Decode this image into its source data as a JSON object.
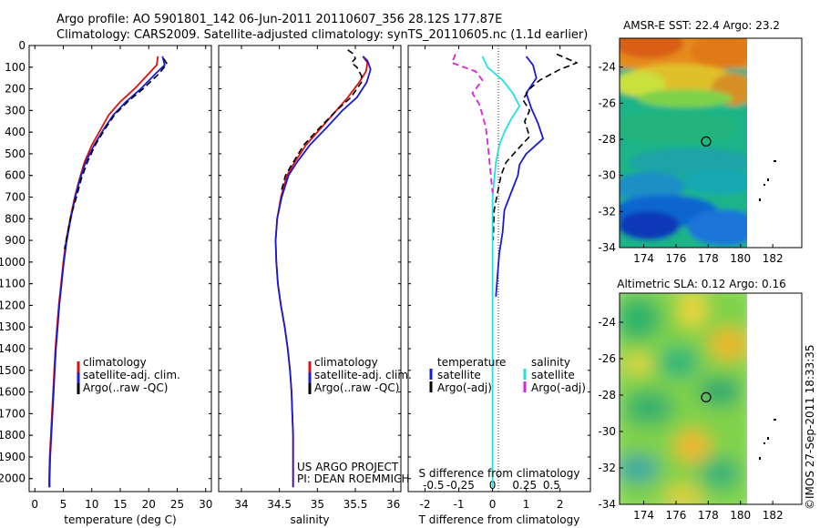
{
  "header": {
    "line1": "Argo profile: AO 5901801_142 06-Jun-2011 20110607_356 28.12S 177.87E",
    "line2": "Climatology: CARS2009. Satellite-adjusted climatology: synTS_20110605.nc (1.1d earlier)"
  },
  "project_note": {
    "line1": "US ARGO PROJECT",
    "line2": "PI: DEAN ROEMMICH"
  },
  "footer_stamp": "©IMOS 27-Sep-2011 18:33:35",
  "colors": {
    "red": "#dd1111",
    "blue": "#1a1ad6",
    "black": "#000000",
    "cyan": "#22e0e6",
    "magenta": "#e020e0"
  },
  "chart_data": [
    {
      "type": "line",
      "panel": "temperature",
      "xlabel": "temperature (deg C)",
      "xlim": [
        -1,
        31
      ],
      "xticks": [
        0,
        5,
        10,
        15,
        20,
        25,
        30
      ],
      "ylim": [
        2060,
        0
      ],
      "yticks": [
        0,
        100,
        200,
        300,
        400,
        500,
        600,
        700,
        800,
        900,
        1000,
        1100,
        1200,
        1300,
        1400,
        1500,
        1600,
        1700,
        1800,
        1900,
        2000
      ],
      "legend": {
        "placement": "lower-center",
        "entries": [
          "climatology",
          "satellite-adj. clim.",
          "Argo(..raw -QC)"
        ]
      },
      "series": [
        {
          "name": "climatology",
          "color": "red",
          "style": "solid",
          "points": [
            [
              21.6,
              50
            ],
            [
              21.4,
              90
            ],
            [
              20,
              130
            ],
            [
              17.5,
              200
            ],
            [
              15,
              260
            ],
            [
              13,
              320
            ],
            [
              11.5,
              390
            ],
            [
              10,
              460
            ],
            [
              8.7,
              540
            ],
            [
              7.8,
              620
            ],
            [
              7,
              700
            ],
            [
              6.2,
              800
            ],
            [
              5.5,
              900
            ],
            [
              5,
              1000
            ],
            [
              4.6,
              1100
            ],
            [
              4.2,
              1200
            ],
            [
              3.9,
              1300
            ],
            [
              3.6,
              1400
            ],
            [
              3.4,
              1500
            ],
            [
              3.2,
              1600
            ],
            [
              3,
              1700
            ],
            [
              2.8,
              1800
            ],
            [
              2.6,
              1900
            ],
            [
              2.5,
              2000
            ],
            [
              2.5,
              2040
            ]
          ]
        },
        {
          "name": "satellite-adj. clim.",
          "color": "blue",
          "style": "solid",
          "points": [
            [
              22.4,
              50
            ],
            [
              22.8,
              90
            ],
            [
              21.2,
              130
            ],
            [
              18.6,
              200
            ],
            [
              16,
              260
            ],
            [
              13.8,
              320
            ],
            [
              12,
              390
            ],
            [
              10.4,
              460
            ],
            [
              8.9,
              540
            ],
            [
              7.9,
              620
            ],
            [
              7.1,
              700
            ],
            [
              6.3,
              800
            ],
            [
              5.6,
              900
            ],
            [
              5.1,
              1000
            ],
            [
              4.7,
              1100
            ],
            [
              4.3,
              1200
            ],
            [
              4,
              1300
            ],
            [
              3.7,
              1400
            ],
            [
              3.5,
              1500
            ],
            [
              3.3,
              1600
            ],
            [
              3.1,
              1700
            ],
            [
              2.9,
              1800
            ],
            [
              2.7,
              1900
            ],
            [
              2.6,
              2000
            ],
            [
              2.6,
              2040
            ]
          ]
        },
        {
          "name": "Argo(..raw -QC)",
          "color": "black",
          "style": "dashed",
          "points": [
            [
              22.6,
              60
            ],
            [
              23.2,
              85
            ],
            [
              21.8,
              130
            ],
            [
              19,
              200
            ],
            [
              16.3,
              260
            ],
            [
              14,
              320
            ],
            [
              12.2,
              390
            ],
            [
              10.6,
              460
            ],
            [
              9.2,
              540
            ],
            [
              8.1,
              620
            ],
            [
              7.3,
              700
            ],
            [
              6.4,
              780
            ],
            [
              5.8,
              860
            ],
            [
              5.2,
              940
            ]
          ]
        }
      ]
    },
    {
      "type": "line",
      "panel": "salinity",
      "xlabel": "salinity",
      "xlim": [
        33.7,
        36.1
      ],
      "xticks": [
        34,
        34.5,
        35,
        35.5,
        36
      ],
      "ylim": [
        2060,
        0
      ],
      "legend": {
        "placement": "lower-center",
        "entries": [
          "climatology",
          "satellite-adj. clim.",
          "Argo(..raw -QC)"
        ]
      },
      "series": [
        {
          "name": "climatology",
          "color": "red",
          "style": "solid",
          "points": [
            [
              35.6,
              50
            ],
            [
              35.66,
              80
            ],
            [
              35.64,
              120
            ],
            [
              35.55,
              170
            ],
            [
              35.4,
              240
            ],
            [
              35.25,
              300
            ],
            [
              35.05,
              380
            ],
            [
              34.85,
              460
            ],
            [
              34.7,
              540
            ],
            [
              34.6,
              600
            ],
            [
              34.52,
              700
            ],
            [
              34.47,
              800
            ],
            [
              34.45,
              900
            ],
            [
              34.46,
              1000
            ],
            [
              34.48,
              1100
            ],
            [
              34.52,
              1200
            ],
            [
              34.57,
              1300
            ],
            [
              34.61,
              1400
            ],
            [
              34.64,
              1500
            ],
            [
              34.66,
              1600
            ],
            [
              34.67,
              1700
            ],
            [
              34.68,
              1800
            ],
            [
              34.68,
              1900
            ],
            [
              34.68,
              2000
            ],
            [
              34.68,
              2040
            ]
          ]
        },
        {
          "name": "satellite-adj. clim.",
          "color": "blue",
          "style": "solid",
          "points": [
            [
              35.6,
              50
            ],
            [
              35.66,
              70
            ],
            [
              35.7,
              110
            ],
            [
              35.65,
              170
            ],
            [
              35.52,
              240
            ],
            [
              35.33,
              300
            ],
            [
              35.12,
              380
            ],
            [
              34.9,
              460
            ],
            [
              34.73,
              540
            ],
            [
              34.62,
              600
            ],
            [
              34.53,
              700
            ],
            [
              34.47,
              800
            ],
            [
              34.45,
              900
            ],
            [
              34.46,
              1000
            ],
            [
              34.48,
              1100
            ],
            [
              34.52,
              1200
            ],
            [
              34.57,
              1300
            ],
            [
              34.61,
              1400
            ],
            [
              34.64,
              1500
            ],
            [
              34.66,
              1600
            ],
            [
              34.67,
              1700
            ],
            [
              34.68,
              1800
            ],
            [
              34.68,
              1900
            ],
            [
              34.68,
              2000
            ],
            [
              34.68,
              2040
            ]
          ]
        },
        {
          "name": "Argo(..raw -QC)",
          "color": "black",
          "style": "dashed",
          "points": [
            [
              35.4,
              20
            ],
            [
              35.48,
              40
            ],
            [
              35.5,
              60
            ],
            [
              35.45,
              80
            ],
            [
              35.52,
              100
            ],
            [
              35.58,
              140
            ],
            [
              35.58,
              170
            ],
            [
              35.44,
              240
            ],
            [
              35.25,
              300
            ],
            [
              35.03,
              380
            ],
            [
              34.82,
              460
            ],
            [
              34.68,
              540
            ],
            [
              34.58,
              600
            ],
            [
              34.52,
              680
            ]
          ]
        }
      ]
    },
    {
      "type": "line",
      "panel": "difference",
      "xlabel": "T difference from climatology",
      "xlim": [
        -2.5,
        2.9
      ],
      "xticks": [
        -2,
        -1,
        0,
        1,
        2
      ],
      "xlabel2": "S difference from climatology",
      "xticks2": [
        {
          "label": "-0.5",
          "value": -1.75
        },
        {
          "label": "-0.25",
          "value": -0.95
        },
        {
          "label": "0",
          "value": 0
        },
        {
          "label": "0.25",
          "value": 0.95
        },
        {
          "label": "0.5",
          "value": 1.75
        }
      ],
      "ylim": [
        2060,
        0
      ],
      "legend": {
        "placement": "lower-center",
        "headers": [
          "temperature",
          "salinity"
        ],
        "entries": [
          "satellite",
          "Argo(-adj)",
          "satellite",
          "Argo(-adj)"
        ]
      },
      "series": [
        {
          "name": "temperature satellite",
          "color": "blue",
          "style": "solid",
          "points": [
            [
              1.0,
              50
            ],
            [
              1.2,
              90
            ],
            [
              1.3,
              150
            ],
            [
              1.0,
              220
            ],
            [
              1.15,
              290
            ],
            [
              1.35,
              360
            ],
            [
              1.5,
              430
            ],
            [
              1.0,
              500
            ],
            [
              0.8,
              550
            ],
            [
              0.75,
              600
            ],
            [
              0.6,
              660
            ],
            [
              0.35,
              760
            ],
            [
              0.3,
              860
            ],
            [
              0.2,
              960
            ],
            [
              0.15,
              1060
            ],
            [
              0.1,
              1160
            ]
          ]
        },
        {
          "name": "temperature Argo(-adj)",
          "color": "black",
          "style": "dashed",
          "points": [
            [
              1.9,
              40
            ],
            [
              2.5,
              80
            ],
            [
              2.0,
              110
            ],
            [
              1.4,
              160
            ],
            [
              1.1,
              200
            ],
            [
              0.9,
              250
            ],
            [
              1.1,
              300
            ],
            [
              0.95,
              350
            ],
            [
              1.1,
              420
            ],
            [
              0.8,
              470
            ],
            [
              0.4,
              540
            ],
            [
              0.25,
              600
            ],
            [
              0.15,
              680
            ],
            [
              0.05,
              760
            ],
            [
              0.02,
              900
            ]
          ]
        },
        {
          "name": "salinity satellite",
          "color": "cyan",
          "style": "solid",
          "points": [
            [
              -0.3,
              50
            ],
            [
              -0.15,
              100
            ],
            [
              0.3,
              160
            ],
            [
              0.6,
              220
            ],
            [
              0.8,
              280
            ],
            [
              0.55,
              340
            ],
            [
              0.35,
              400
            ],
            [
              0.2,
              460
            ],
            [
              0.1,
              540
            ],
            [
              0.05,
              620
            ],
            [
              0.0,
              700
            ],
            [
              0.0,
              800
            ],
            [
              0.0,
              900
            ],
            [
              0.0,
              1000
            ],
            [
              0.0,
              1100
            ],
            [
              0.0,
              1200
            ],
            [
              0.0,
              1300
            ],
            [
              0.0,
              1400
            ],
            [
              0.0,
              1500
            ],
            [
              0.0,
              1600
            ],
            [
              0.0,
              1700
            ],
            [
              0.0,
              1800
            ],
            [
              0.0,
              1900
            ],
            [
              0.0,
              2040
            ]
          ]
        },
        {
          "name": "salinity Argo(-adj)",
          "color": "magenta",
          "style": "dashed",
          "points": [
            [
              -1.1,
              40
            ],
            [
              -1.2,
              80
            ],
            [
              -0.5,
              120
            ],
            [
              -0.3,
              160
            ],
            [
              -0.6,
              220
            ],
            [
              -0.4,
              270
            ],
            [
              -0.3,
              320
            ],
            [
              -0.2,
              380
            ],
            [
              -0.15,
              440
            ],
            [
              -0.1,
              520
            ],
            [
              -0.05,
              600
            ],
            [
              0.0,
              680
            ]
          ]
        }
      ]
    },
    {
      "type": "heatmap",
      "panel": "sst-map",
      "title": "AMSR-E SST: 22.4 Argo: 23.2",
      "xlim": [
        172.5,
        183.8
      ],
      "xticks": [
        174,
        176,
        178,
        180,
        182
      ],
      "ylim": [
        -34,
        -22.4
      ],
      "yticks": [
        -24,
        -26,
        -28,
        -30,
        -32,
        -34
      ],
      "argo_position": [
        177.87,
        -28.12
      ]
    },
    {
      "type": "heatmap",
      "panel": "sla-map",
      "title": "Altimetric SLA: 0.12 Argo: 0.16",
      "xlim": [
        172.5,
        183.8
      ],
      "xticks": [
        174,
        176,
        178,
        180,
        182
      ],
      "ylim": [
        -34,
        -22.4
      ],
      "yticks": [
        -24,
        -26,
        -28,
        -30,
        -32,
        -34
      ],
      "argo_position": [
        177.87,
        -28.12
      ]
    }
  ]
}
